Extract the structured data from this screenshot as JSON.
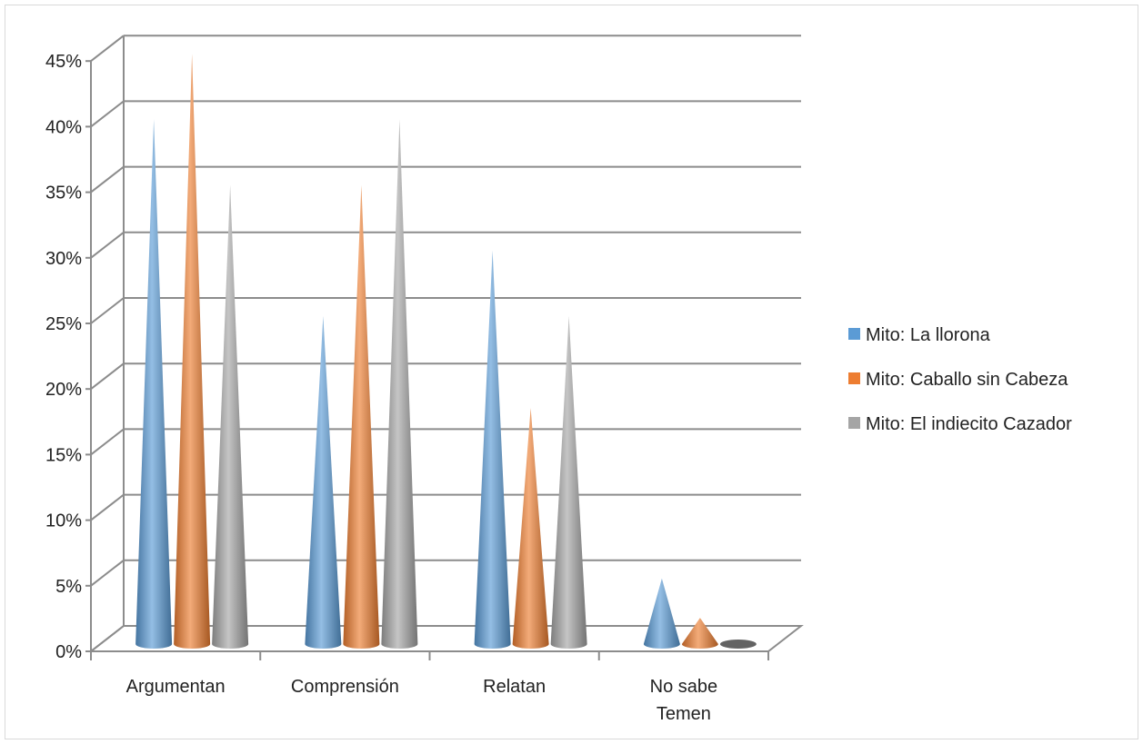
{
  "chart_data": {
    "type": "bar",
    "subtype": "3d-cone-clustered",
    "title": "",
    "xlabel": "",
    "ylabel": "",
    "ylim": [
      0,
      0.45
    ],
    "yticks": [
      "0%",
      "5%",
      "10%",
      "15%",
      "20%",
      "25%",
      "30%",
      "35%",
      "40%",
      "45%"
    ],
    "categories": [
      [
        "Argumentan"
      ],
      [
        "Comprensión"
      ],
      [
        "Relatan"
      ],
      [
        "No sabe",
        "Temen"
      ]
    ],
    "series": [
      {
        "name": "Mito: La llorona",
        "values": [
          0.4,
          0.25,
          0.3,
          0.05
        ],
        "color": "#5b9bd5"
      },
      {
        "name": "Mito: Caballo sin Cabeza",
        "values": [
          0.45,
          0.35,
          0.18,
          0.02
        ],
        "color": "#ed7d31"
      },
      {
        "name": "Mito: El indiecito Cazador",
        "values": [
          0.35,
          0.4,
          0.25,
          0.0
        ],
        "color": "#a5a5a5"
      }
    ],
    "grid": true,
    "legend_position": "right"
  }
}
